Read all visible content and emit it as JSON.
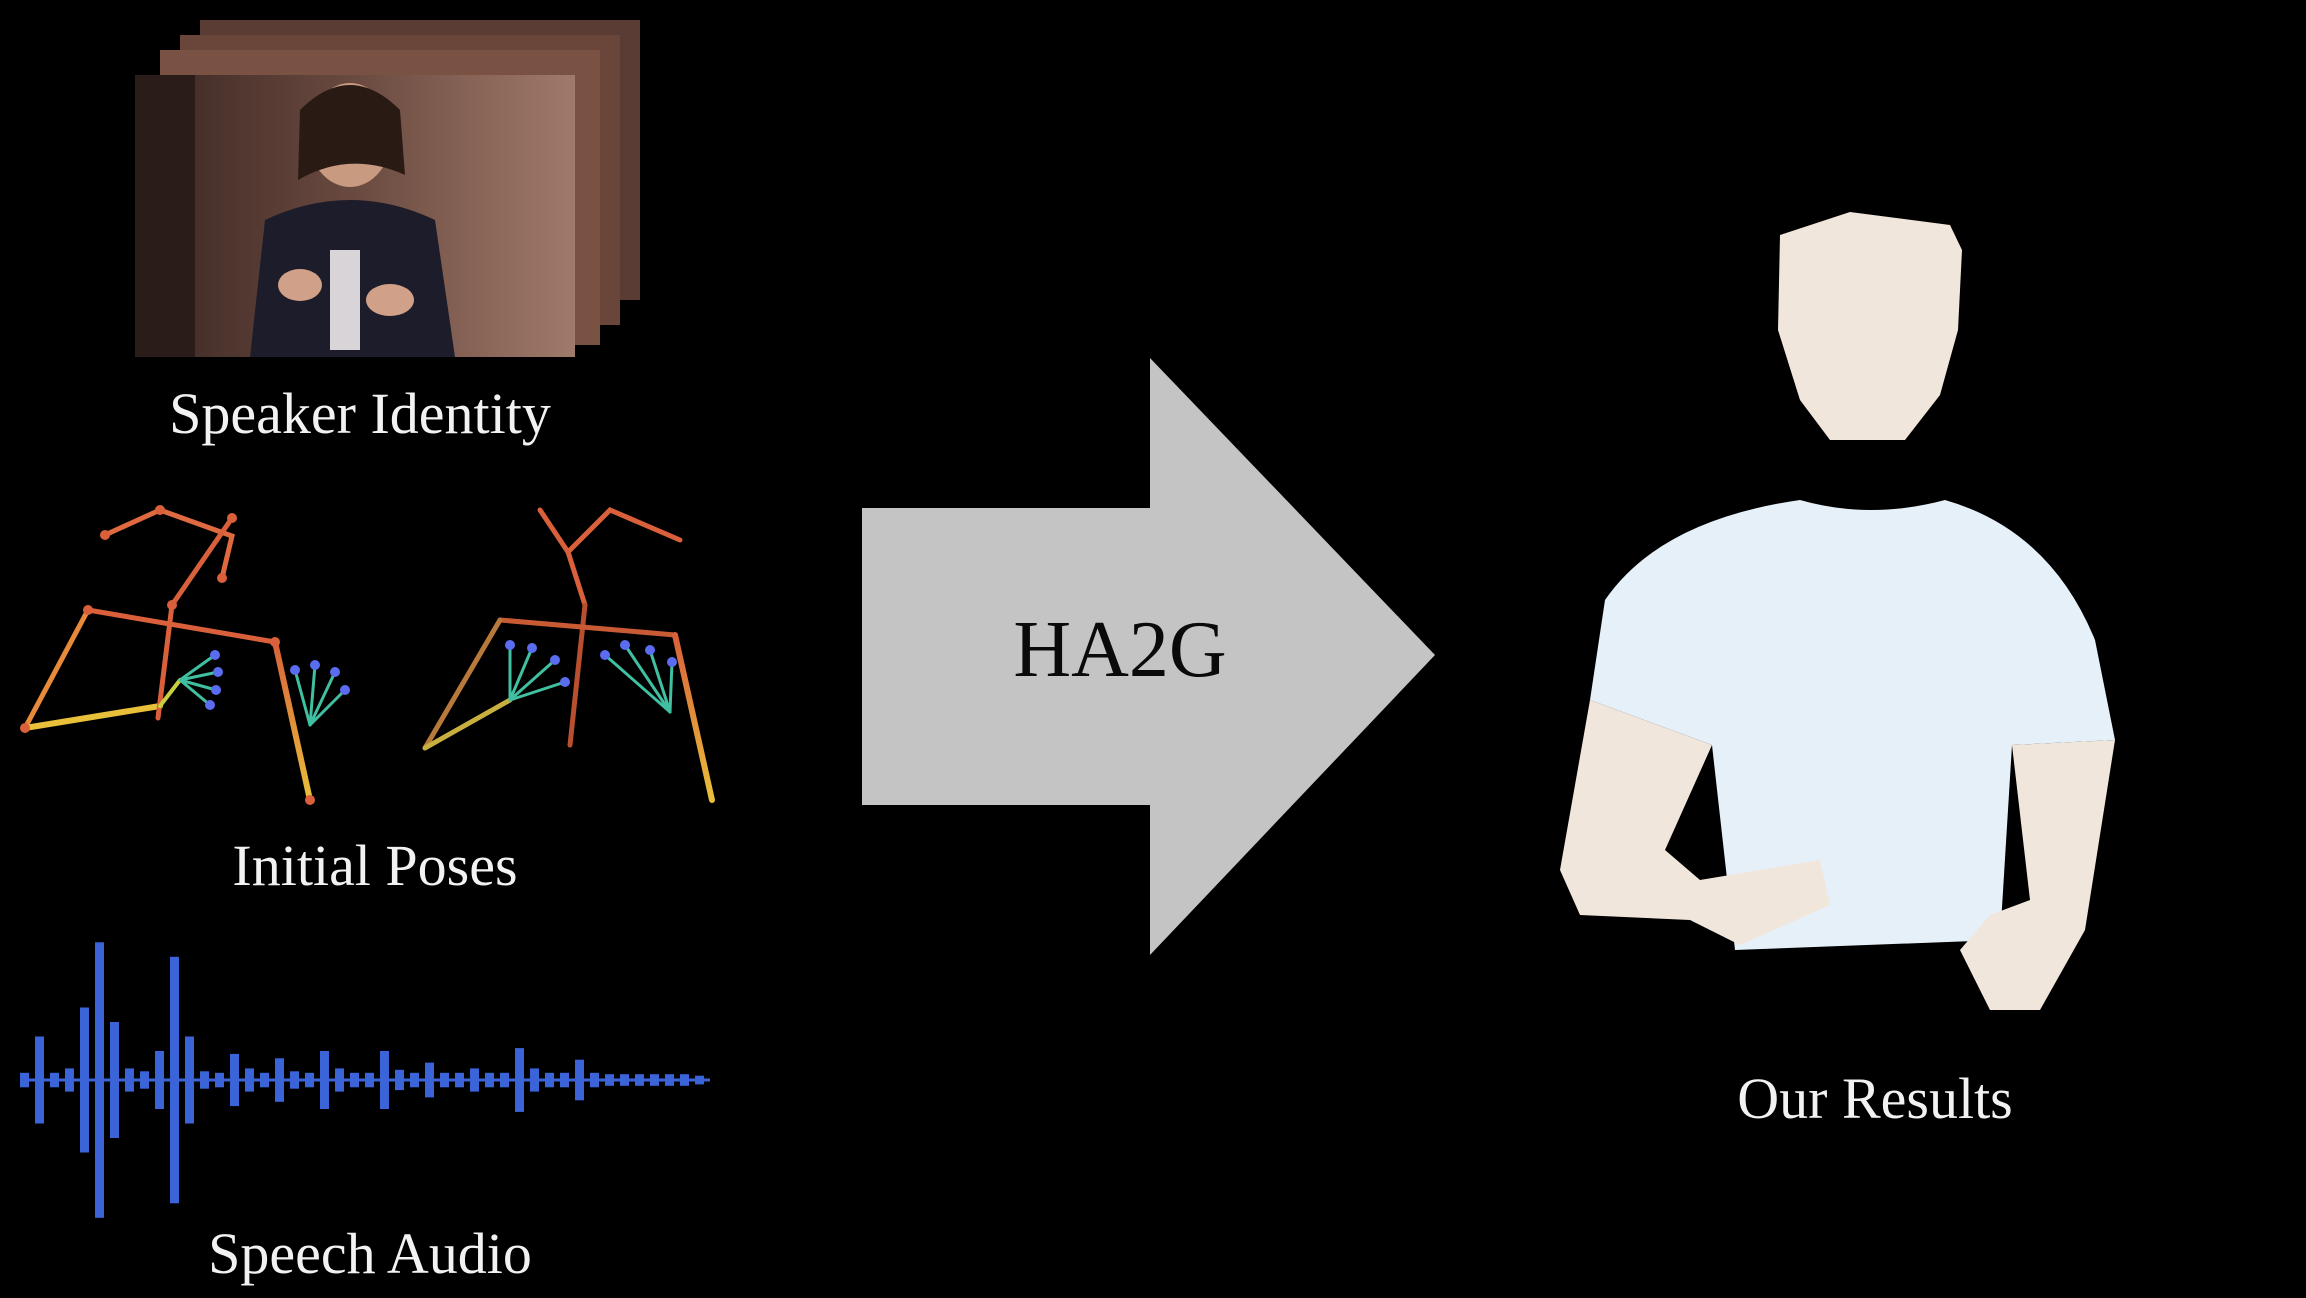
{
  "inputs": {
    "speaker_identity": "Speaker Identity",
    "initial_poses": "Initial Poses",
    "speech_audio": "Speech Audio"
  },
  "model": {
    "name": "HA2G"
  },
  "output": {
    "label": "Our Results"
  },
  "colors": {
    "background": "#000000",
    "arrow": "#c4c4c4",
    "audio_wave": "#3b64d8",
    "skeleton_upper": "#d9603a",
    "skeleton_lower": "#e8b33a",
    "hand_joints": "#5a6cf0",
    "avatar_skin": "#f1e6dc",
    "avatar_shirt": "#e6f0f8"
  },
  "audio_envelope": [
    0.05,
    0.3,
    0.05,
    0.08,
    0.5,
    0.95,
    0.4,
    0.08,
    0.06,
    0.2,
    0.85,
    0.3,
    0.06,
    0.05,
    0.18,
    0.08,
    0.05,
    0.15,
    0.06,
    0.05,
    0.2,
    0.08,
    0.05,
    0.05,
    0.2,
    0.07,
    0.05,
    0.12,
    0.05,
    0.05,
    0.08,
    0.05,
    0.05,
    0.22,
    0.08,
    0.05,
    0.05,
    0.14,
    0.05,
    0.04,
    0.04,
    0.04,
    0.04,
    0.04,
    0.04,
    0.03
  ]
}
